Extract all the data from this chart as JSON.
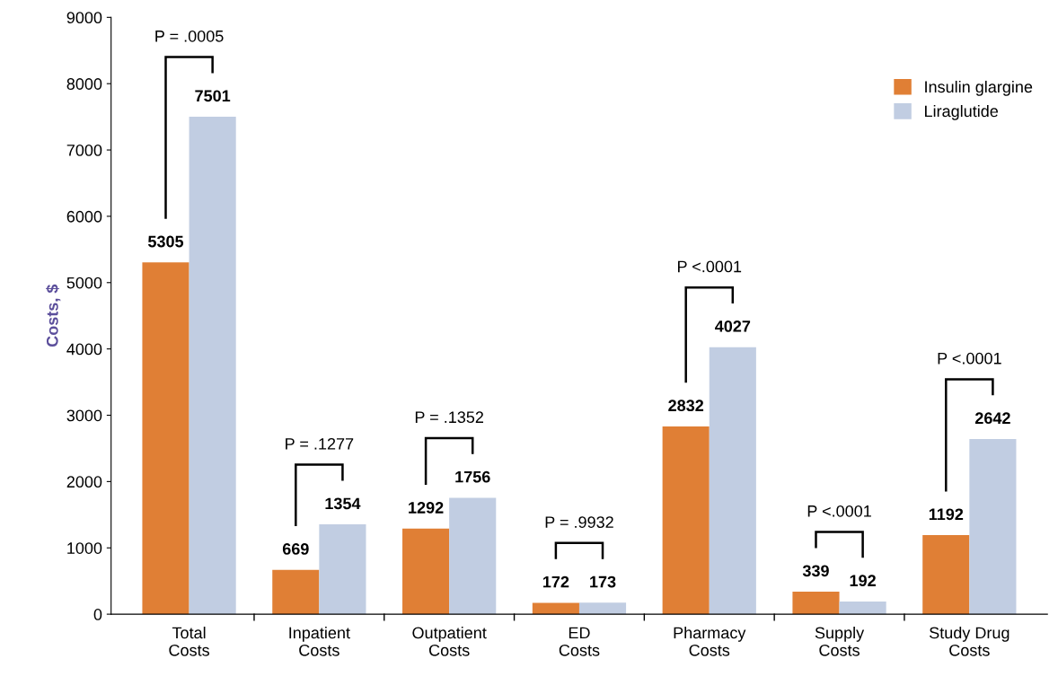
{
  "chart_data": {
    "type": "bar",
    "ylabel": "Costs, $",
    "categories": [
      "Total\nCosts",
      "Inpatient\nCosts",
      "Outpatient\nCosts",
      "ED\nCosts",
      "Pharmacy\nCosts",
      "Supply\nCosts",
      "Study Drug\nCosts"
    ],
    "series": [
      {
        "name": "Insulin glargine",
        "color": "#e07f35",
        "values": [
          5305,
          669,
          1292,
          172,
          2832,
          339,
          1192
        ]
      },
      {
        "name": "Liraglutide",
        "color": "#c1cde2",
        "values": [
          7501,
          1354,
          1756,
          173,
          4027,
          192,
          2642
        ]
      }
    ],
    "annotations": [
      "P = .0005",
      "P = .1277",
      "P = .1352",
      "P = .9932",
      "P <.0001",
      "P <.0001",
      "P <.0001"
    ],
    "ylim": [
      0,
      9000
    ],
    "yticks": [
      0,
      1000,
      2000,
      3000,
      4000,
      5000,
      6000,
      7000,
      8000,
      9000
    ],
    "data_labels": true,
    "grid": false,
    "legend": "top right"
  }
}
